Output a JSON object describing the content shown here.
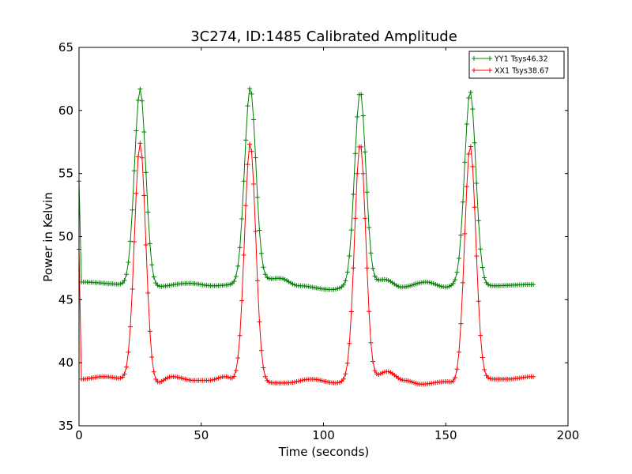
{
  "chart_data": {
    "type": "line",
    "title": "3C274, ID:1485 Calibrated Amplitude",
    "xlabel": "Time (seconds)",
    "ylabel": "Power in Kelvin",
    "xlim": [
      0,
      200
    ],
    "ylim": [
      35,
      65
    ],
    "xticks": [
      0,
      50,
      100,
      150,
      200
    ],
    "yticks": [
      35,
      40,
      45,
      50,
      55,
      60,
      65
    ],
    "grid": false,
    "legend_position": "top-right",
    "marker": "plus",
    "x_end": 186,
    "series": [
      {
        "name": "YY1 Tsys46.32",
        "color": "#008000",
        "start_points": [
          [
            0,
            54.4
          ],
          [
            1,
            46.4
          ]
        ],
        "baseline_points": [
          [
            1,
            46.4
          ],
          [
            20,
            46.2
          ],
          [
            30,
            46.0
          ],
          [
            45,
            46.3
          ],
          [
            55,
            46.1
          ],
          [
            64,
            46.2
          ],
          [
            76,
            46.6
          ],
          [
            82,
            46.7
          ],
          [
            90,
            46.1
          ],
          [
            103,
            45.8
          ],
          [
            110,
            46.0
          ],
          [
            118,
            46.2
          ],
          [
            125,
            46.6
          ],
          [
            132,
            46.0
          ],
          [
            142,
            46.4
          ],
          [
            150,
            46.0
          ],
          [
            155,
            46.2
          ],
          [
            168,
            46.1
          ],
          [
            186,
            46.2
          ]
        ],
        "peaks": [
          [
            25,
            61.7
          ],
          [
            70,
            61.8
          ],
          [
            115,
            61.5
          ],
          [
            160,
            61.5
          ]
        ]
      },
      {
        "name": "XX1 Tsys38.67",
        "color": "#ff0000",
        "start_points": [
          [
            0,
            49.0
          ],
          [
            1,
            38.7
          ]
        ],
        "baseline_points": [
          [
            1,
            38.7
          ],
          [
            10,
            38.9
          ],
          [
            20,
            38.7
          ],
          [
            31,
            38.3
          ],
          [
            38,
            38.9
          ],
          [
            47,
            38.6
          ],
          [
            53,
            38.6
          ],
          [
            60,
            38.9
          ],
          [
            64,
            38.6
          ],
          [
            76,
            38.4
          ],
          [
            85,
            38.4
          ],
          [
            95,
            38.7
          ],
          [
            105,
            38.4
          ],
          [
            110,
            38.5
          ],
          [
            118,
            38.5
          ],
          [
            126,
            39.3
          ],
          [
            133,
            38.6
          ],
          [
            140,
            38.3
          ],
          [
            150,
            38.5
          ],
          [
            155,
            38.3
          ],
          [
            168,
            38.7
          ],
          [
            175,
            38.7
          ],
          [
            186,
            38.9
          ]
        ],
        "peaks": [
          [
            25,
            57.4
          ],
          [
            70,
            57.4
          ],
          [
            115,
            57.4
          ],
          [
            160,
            57.2
          ]
        ]
      }
    ]
  }
}
